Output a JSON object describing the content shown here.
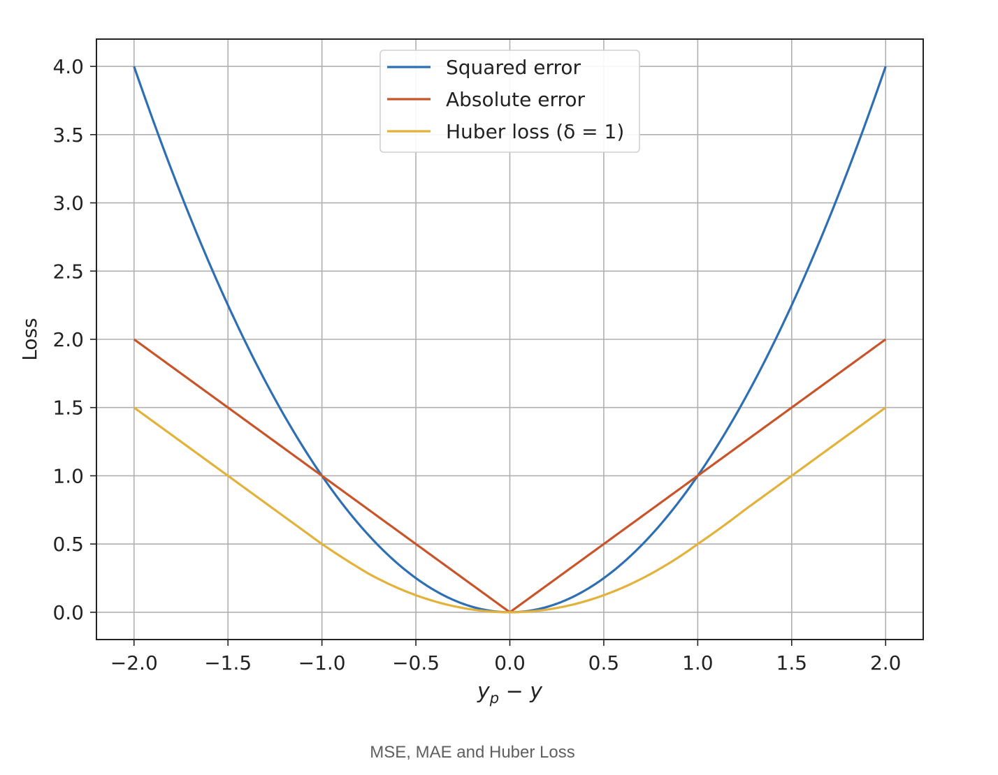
{
  "chart_data": {
    "type": "line",
    "title": "",
    "xlabel": "y_p − y",
    "xlabel_parts": {
      "base": "y",
      "sub": "p",
      "rest": " − y"
    },
    "ylabel": "Loss",
    "xlim": [
      -2.2,
      2.2
    ],
    "ylim": [
      -0.2,
      4.2
    ],
    "xticks": [
      -2.0,
      -1.5,
      -1.0,
      -0.5,
      0.0,
      0.5,
      1.0,
      1.5,
      2.0
    ],
    "xtick_labels": [
      "−2.0",
      "−1.5",
      "−1.0",
      "−0.5",
      "0.0",
      "0.5",
      "1.0",
      "1.5",
      "2.0"
    ],
    "yticks": [
      0.0,
      0.5,
      1.0,
      1.5,
      2.0,
      2.5,
      3.0,
      3.5,
      4.0
    ],
    "ytick_labels": [
      "0.0",
      "0.5",
      "1.0",
      "1.5",
      "2.0",
      "2.5",
      "3.0",
      "3.5",
      "4.0"
    ],
    "grid": true,
    "legend_position": "top-center",
    "x": [
      -2.0,
      -1.75,
      -1.5,
      -1.25,
      -1.0,
      -0.75,
      -0.5,
      -0.25,
      0.0,
      0.25,
      0.5,
      0.75,
      1.0,
      1.25,
      1.5,
      1.75,
      2.0
    ],
    "series": [
      {
        "name": "Squared error",
        "color": "#2e6fb3",
        "values": [
          4.0,
          3.0625,
          2.25,
          1.5625,
          1.0,
          0.5625,
          0.25,
          0.0625,
          0.0,
          0.0625,
          0.25,
          0.5625,
          1.0,
          1.5625,
          2.25,
          3.0625,
          4.0
        ]
      },
      {
        "name": "Absolute error",
        "color": "#c8552a",
        "values": [
          2.0,
          1.75,
          1.5,
          1.25,
          1.0,
          0.75,
          0.5,
          0.25,
          0.0,
          0.25,
          0.5,
          0.75,
          1.0,
          1.25,
          1.5,
          1.75,
          2.0
        ]
      },
      {
        "name": "Huber loss (δ = 1)",
        "color": "#e2b23a",
        "values": [
          1.5,
          1.25,
          1.0,
          0.75,
          0.5,
          0.28125,
          0.125,
          0.03125,
          0.0,
          0.03125,
          0.125,
          0.28125,
          0.5,
          0.75,
          1.0,
          1.25,
          1.5
        ]
      }
    ]
  },
  "caption": "MSE, MAE and Huber Loss"
}
